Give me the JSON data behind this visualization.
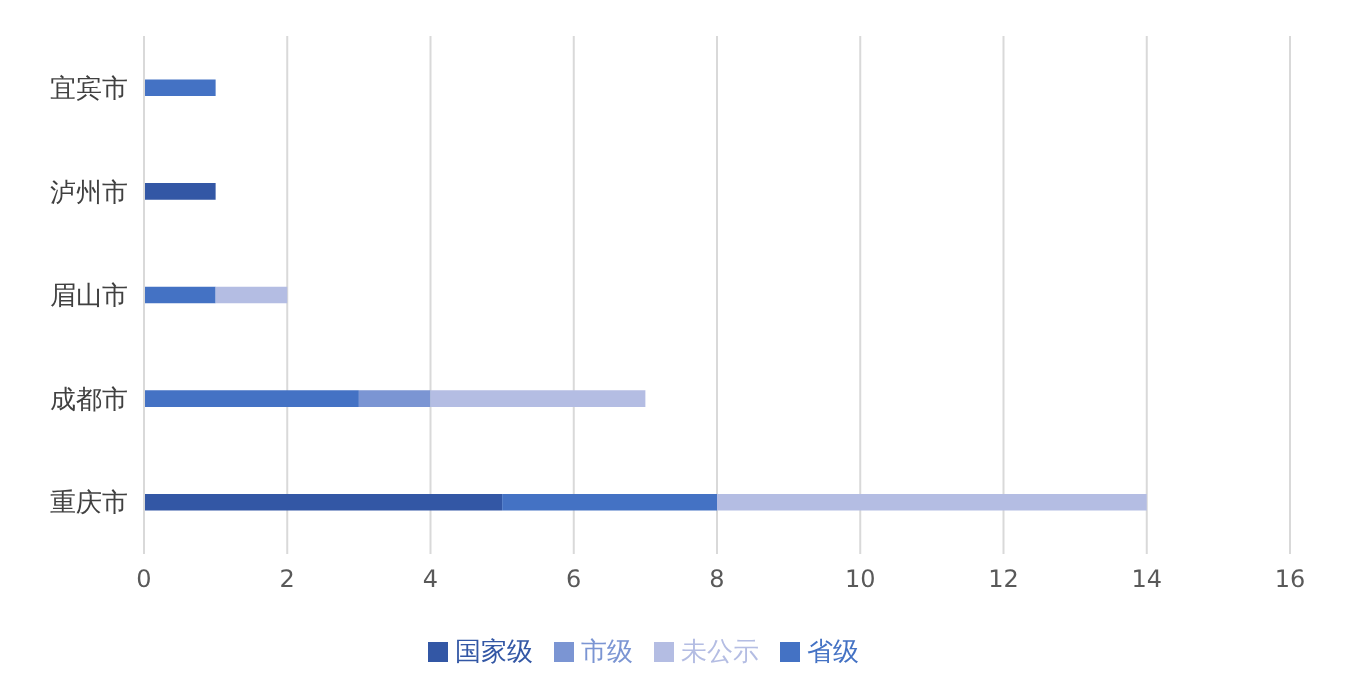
{
  "chart_data": {
    "type": "bar",
    "orientation": "horizontal",
    "stacked": true,
    "categories": [
      "宜宾市",
      "泸州市",
      "眉山市",
      "成都市",
      "重庆市"
    ],
    "series": [
      {
        "name": "国家级",
        "color": "#3357a5",
        "values": [
          null,
          1,
          null,
          null,
          5
        ]
      },
      {
        "name": "省级",
        "color": "#4472c4",
        "values": [
          1,
          null,
          1,
          3,
          3
        ]
      },
      {
        "name": "市级",
        "color": "#7b95d3",
        "values": [
          null,
          null,
          null,
          1,
          null
        ]
      },
      {
        "name": "未公示",
        "color": "#b4bde3",
        "values": [
          null,
          null,
          1,
          3,
          6
        ]
      }
    ],
    "xlim": [
      0,
      16
    ],
    "xticks": [
      0,
      2,
      4,
      6,
      8,
      10,
      12,
      14,
      16
    ],
    "grid": "x",
    "legend": "bottom"
  }
}
